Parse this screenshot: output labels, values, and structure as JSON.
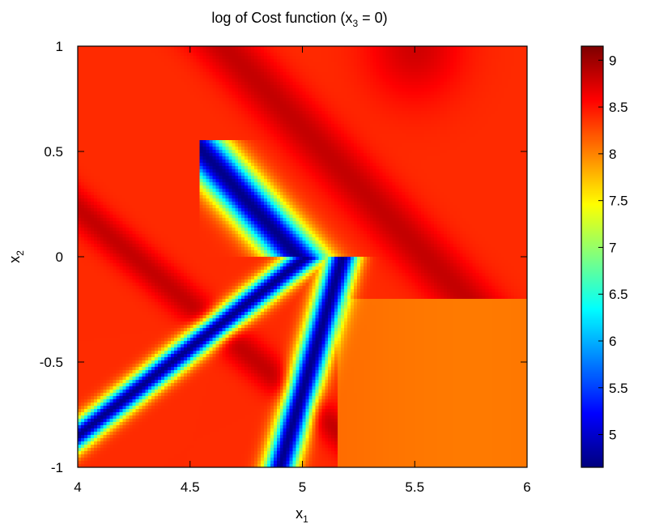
{
  "chart_data": {
    "type": "heatmap",
    "title": "log of Cost function (x3 = 0)",
    "title_parts": {
      "prefix": "log of Cost function (x",
      "sub": "3",
      "suffix": " = 0)"
    },
    "xlabel": {
      "base": "x",
      "sub": "1"
    },
    "ylabel": {
      "base": "x",
      "sub": "2"
    },
    "xlim": [
      4,
      6
    ],
    "ylim": [
      -1,
      1
    ],
    "x_ticks": [
      "4",
      "4.5",
      "5",
      "5.5",
      "6"
    ],
    "y_ticks": [
      "-1",
      "-0.5",
      "0",
      "0.5",
      "1"
    ],
    "colorbar": {
      "range": [
        4.65,
        9.15
      ],
      "ticks": [
        "5",
        "5.5",
        "6",
        "6.5",
        "7",
        "7.5",
        "8",
        "8.5",
        "9"
      ],
      "colormap": "jet"
    },
    "grid": false,
    "approximate_values": {
      "valley_minimum": 4.7,
      "background_plateau": 8.4,
      "ridge_maximum": 8.9,
      "lower_right_region": 8.1
    }
  }
}
